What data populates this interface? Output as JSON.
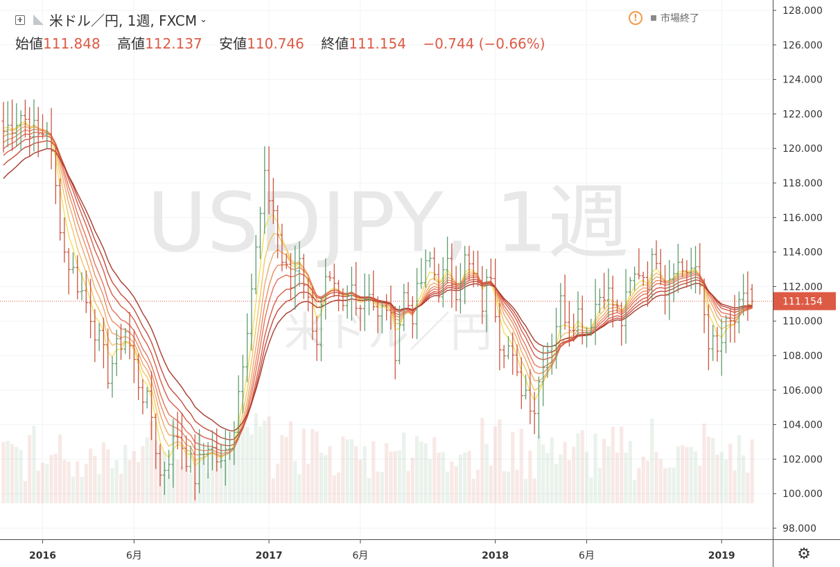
{
  "header": {
    "symbol": "米ドル／円, 1週, FXCM",
    "ohlc": [
      {
        "label": "始値",
        "value": "111.848"
      },
      {
        "label": "高値",
        "value": "112.137"
      },
      {
        "label": "安値",
        "value": "110.746"
      },
      {
        "label": "終値",
        "value": "111.154"
      }
    ],
    "change": "−0.744 (−0.66%)",
    "market_status": "市場終了"
  },
  "watermark": {
    "line1": "USDJPY, 1週",
    "line2": "米ドル／円"
  },
  "colors": {
    "up": "#5e9b6e",
    "down": "#c9543e",
    "last_price": "#dd5a45",
    "ribbon": [
      "#f2e05c",
      "#f1c467",
      "#f0a86a",
      "#ec8c63",
      "#e4725a",
      "#d65a48",
      "#c24a3a",
      "#a53a2c"
    ]
  },
  "chart_data": {
    "type": "ohlc",
    "price_axis": {
      "min": 97.2,
      "max": 128.5,
      "ticks": [
        "98.000",
        "100.000",
        "102.000",
        "104.000",
        "106.000",
        "108.000",
        "110.000",
        "112.000",
        "114.000",
        "116.000",
        "118.000",
        "120.000",
        "122.000",
        "124.000",
        "126.000",
        "128.000"
      ]
    },
    "last_price": "111.154",
    "time_axis": [
      {
        "label": "2016",
        "week": 9,
        "bold": true
      },
      {
        "label": "6月",
        "week": 30,
        "bold": false
      },
      {
        "label": "2017",
        "week": 61,
        "bold": true
      },
      {
        "label": "6月",
        "week": 82,
        "bold": false
      },
      {
        "label": "2018",
        "week": 113,
        "bold": true
      },
      {
        "label": "6月",
        "week": 134,
        "bold": false
      },
      {
        "label": "2019",
        "week": 165,
        "bold": true
      }
    ],
    "close_path": [
      [
        0,
        121.0
      ],
      [
        4,
        122.0
      ],
      [
        8,
        120.7
      ],
      [
        10,
        121.2
      ],
      [
        14,
        114.0
      ],
      [
        20,
        110.5
      ],
      [
        24,
        107.0
      ],
      [
        28,
        109.5
      ],
      [
        31,
        106.5
      ],
      [
        34,
        104.5
      ],
      [
        36,
        101.0
      ],
      [
        40,
        103.5
      ],
      [
        44,
        101.0
      ],
      [
        47,
        103.0
      ],
      [
        50,
        101.5
      ],
      [
        53,
        104.0
      ],
      [
        56,
        110.0
      ],
      [
        58,
        114.0
      ],
      [
        60,
        118.0
      ],
      [
        62,
        116.5
      ],
      [
        64,
        113.5
      ],
      [
        66,
        112.0
      ],
      [
        68,
        114.0
      ],
      [
        70,
        111.0
      ],
      [
        72,
        109.0
      ],
      [
        74,
        112.0
      ],
      [
        76,
        111.5
      ],
      [
        78,
        110.5
      ],
      [
        80,
        112.0
      ],
      [
        82,
        111.0
      ],
      [
        84,
        112.0
      ],
      [
        86,
        110.0
      ],
      [
        88,
        111.0
      ],
      [
        90,
        108.5
      ],
      [
        92,
        111.5
      ],
      [
        94,
        110.5
      ],
      [
        96,
        112.3
      ],
      [
        98,
        113.5
      ],
      [
        100,
        112.0
      ],
      [
        102,
        113.0
      ],
      [
        104,
        112.0
      ],
      [
        106,
        113.5
      ],
      [
        108,
        112.5
      ],
      [
        110,
        111.0
      ],
      [
        112,
        113.0
      ],
      [
        114,
        109.0
      ],
      [
        116,
        108.5
      ],
      [
        118,
        106.5
      ],
      [
        120,
        106.0
      ],
      [
        122,
        105.0
      ],
      [
        124,
        108.0
      ],
      [
        126,
        109.0
      ],
      [
        128,
        111.0
      ],
      [
        130,
        110.0
      ],
      [
        132,
        110.5
      ],
      [
        134,
        109.5
      ],
      [
        136,
        111.0
      ],
      [
        138,
        112.0
      ],
      [
        140,
        111.0
      ],
      [
        142,
        110.0
      ],
      [
        144,
        112.0
      ],
      [
        146,
        113.0
      ],
      [
        148,
        112.5
      ],
      [
        150,
        114.0
      ],
      [
        152,
        112.0
      ],
      [
        154,
        113.5
      ],
      [
        156,
        113.0
      ],
      [
        158,
        113.0
      ],
      [
        160,
        112.0
      ],
      [
        162,
        109.0
      ],
      [
        164,
        108.0
      ],
      [
        166,
        109.5
      ],
      [
        168,
        110.0
      ],
      [
        170,
        111.0
      ],
      [
        172,
        111.154
      ]
    ],
    "ribbon_periods": [
      4,
      6,
      8,
      10,
      12,
      15,
      18,
      22
    ],
    "ribbon_start": [
      121.3,
      121.0,
      120.6,
      120.2,
      119.8,
      119.4,
      118.8,
      118.0
    ]
  }
}
